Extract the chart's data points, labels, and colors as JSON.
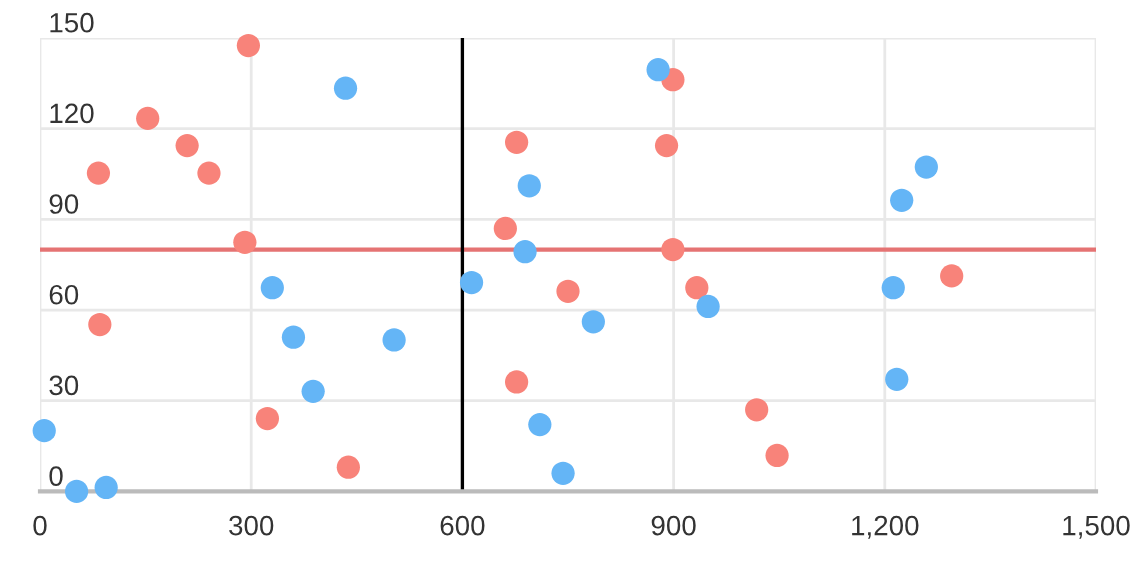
{
  "chart_data": {
    "type": "scatter",
    "series": [
      {
        "color": "#f8837a",
        "x": [
          296,
          153,
          209,
          83,
          240,
          291,
          85,
          323,
          438,
          677,
          661,
          750,
          677,
          899,
          890,
          899,
          933,
          1295,
          1018,
          1047
        ],
        "values": [
          147.5,
          123.4,
          114.4,
          105.3,
          105.3,
          82.4,
          55.2,
          24.1,
          8,
          115.5,
          87,
          66.2,
          36.2,
          136.2,
          114.4,
          80,
          67.4,
          71.3,
          27,
          11.9
        ]
      },
      {
        "color": "#64b5f6",
        "x": [
          434,
          6,
          52,
          94,
          330,
          360,
          388,
          503,
          613,
          695,
          689,
          710,
          743,
          878,
          786,
          949,
          1259,
          1224,
          1212,
          1217
        ],
        "values": [
          133.4,
          20.1,
          0,
          1.3,
          67.4,
          51,
          33.1,
          50.1,
          69.1,
          101.1,
          79.3,
          22.1,
          6,
          139.5,
          56.1,
          61.2,
          107.3,
          96.3,
          67.4,
          37.1
        ]
      }
    ],
    "xlim": [
      0,
      1500
    ],
    "xticks": [
      0,
      300,
      600,
      900,
      {
        "value": 1200,
        "label": "1,200"
      },
      {
        "value": 1500,
        "label": "1,500"
      }
    ],
    "ylim": [
      0,
      150
    ],
    "yticks": [
      0,
      30,
      60,
      90,
      120,
      150
    ],
    "ref_lines": [
      {
        "axis": "y",
        "value": 80,
        "color": "#e57373"
      },
      {
        "axis": "x",
        "value": 600,
        "color": "#000000"
      }
    ],
    "grid": true,
    "marker": "circle",
    "legend": false
  }
}
